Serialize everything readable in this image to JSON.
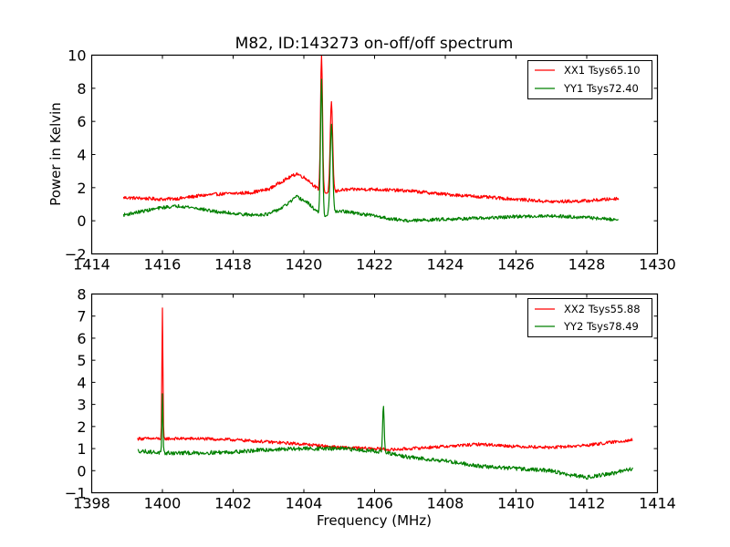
{
  "figure": {
    "title": "M82, ID:143273 on-off/off spectrum"
  },
  "chart_data": [
    {
      "type": "line",
      "title": "M82, ID:143273 on-off/off spectrum",
      "xlabel": "",
      "ylabel": "Power in Kelvin",
      "xlim": [
        1414,
        1430
      ],
      "ylim": [
        -2,
        10
      ],
      "xticks": [
        "1414",
        "1416",
        "1418",
        "1420",
        "1422",
        "1424",
        "1426",
        "1428",
        "1430"
      ],
      "yticks": [
        "−2",
        "0",
        "2",
        "4",
        "6",
        "8",
        "10"
      ],
      "xtick_values": [
        1414,
        1416,
        1418,
        1420,
        1422,
        1424,
        1426,
        1428,
        1430
      ],
      "ytick_values": [
        -2,
        0,
        2,
        4,
        6,
        8,
        10
      ],
      "grid": false,
      "legend_position": "top-right",
      "series": [
        {
          "name": "XX1 Tsys65.10",
          "color": "#ff0000",
          "x_range": [
            1414.9,
            1428.9
          ],
          "baseline": [
            [
              1414.9,
              1.4
            ],
            [
              1415.5,
              1.35
            ],
            [
              1416.0,
              1.3
            ],
            [
              1416.5,
              1.35
            ],
            [
              1417.0,
              1.5
            ],
            [
              1417.5,
              1.6
            ],
            [
              1418.0,
              1.65
            ],
            [
              1418.5,
              1.7
            ],
            [
              1419.0,
              1.9
            ],
            [
              1419.4,
              2.4
            ],
            [
              1419.8,
              2.85
            ],
            [
              1420.1,
              2.5
            ],
            [
              1420.4,
              1.9
            ],
            [
              1420.6,
              1.7
            ],
            [
              1420.75,
              1.6
            ],
            [
              1421.0,
              1.85
            ],
            [
              1421.5,
              1.9
            ],
            [
              1422.0,
              1.9
            ],
            [
              1423.0,
              1.8
            ],
            [
              1424.0,
              1.6
            ],
            [
              1425.0,
              1.45
            ],
            [
              1426.0,
              1.3
            ],
            [
              1427.0,
              1.15
            ],
            [
              1428.0,
              1.2
            ],
            [
              1428.9,
              1.35
            ]
          ],
          "peaks": [
            {
              "x": 1420.5,
              "y": 10.0,
              "width": 0.04
            },
            {
              "x": 1420.78,
              "y": 7.1,
              "width": 0.05
            }
          ],
          "noise": 0.1
        },
        {
          "name": "YY1 Tsys72.40",
          "color": "#008000",
          "x_range": [
            1414.9,
            1428.9
          ],
          "baseline": [
            [
              1414.9,
              0.35
            ],
            [
              1415.5,
              0.6
            ],
            [
              1416.0,
              0.8
            ],
            [
              1416.5,
              0.9
            ],
            [
              1417.0,
              0.75
            ],
            [
              1417.5,
              0.55
            ],
            [
              1418.0,
              0.45
            ],
            [
              1418.5,
              0.35
            ],
            [
              1419.0,
              0.4
            ],
            [
              1419.4,
              0.8
            ],
            [
              1419.8,
              1.45
            ],
            [
              1420.1,
              1.1
            ],
            [
              1420.4,
              0.5
            ],
            [
              1420.6,
              0.3
            ],
            [
              1420.75,
              0.35
            ],
            [
              1421.0,
              0.6
            ],
            [
              1421.5,
              0.45
            ],
            [
              1422.0,
              0.3
            ],
            [
              1422.5,
              0.1
            ],
            [
              1423.0,
              0.0
            ],
            [
              1424.0,
              0.1
            ],
            [
              1425.0,
              0.15
            ],
            [
              1426.0,
              0.25
            ],
            [
              1427.0,
              0.3
            ],
            [
              1428.0,
              0.2
            ],
            [
              1428.9,
              0.05
            ]
          ],
          "peaks": [
            {
              "x": 1420.5,
              "y": 8.5,
              "width": 0.04
            },
            {
              "x": 1420.78,
              "y": 5.8,
              "width": 0.05
            }
          ],
          "noise": 0.1
        }
      ]
    },
    {
      "type": "line",
      "title": "",
      "xlabel": "Frequency (MHz)",
      "ylabel": "",
      "xlim": [
        1398,
        1414
      ],
      "ylim": [
        -1,
        8
      ],
      "xticks": [
        "1398",
        "1400",
        "1402",
        "1404",
        "1406",
        "1408",
        "1410",
        "1412",
        "1414"
      ],
      "yticks": [
        "−1",
        "0",
        "1",
        "2",
        "3",
        "4",
        "5",
        "6",
        "7",
        "8"
      ],
      "xtick_values": [
        1398,
        1400,
        1402,
        1404,
        1406,
        1408,
        1410,
        1412,
        1414
      ],
      "ytick_values": [
        -1,
        0,
        1,
        2,
        3,
        4,
        5,
        6,
        7,
        8
      ],
      "grid": false,
      "legend_position": "top-right",
      "series": [
        {
          "name": "XX2 Tsys55.88",
          "color": "#ff0000",
          "x_range": [
            1399.3,
            1413.3
          ],
          "baseline": [
            [
              1399.3,
              1.45
            ],
            [
              1400.0,
              1.45
            ],
            [
              1401.0,
              1.45
            ],
            [
              1402.0,
              1.4
            ],
            [
              1403.0,
              1.3
            ],
            [
              1404.0,
              1.2
            ],
            [
              1405.0,
              1.05
            ],
            [
              1406.0,
              1.0
            ],
            [
              1406.5,
              0.95
            ],
            [
              1407.0,
              1.0
            ],
            [
              1408.0,
              1.1
            ],
            [
              1409.0,
              1.2
            ],
            [
              1410.0,
              1.1
            ],
            [
              1411.0,
              1.05
            ],
            [
              1412.0,
              1.15
            ],
            [
              1413.3,
              1.4
            ]
          ],
          "peaks": [
            {
              "x": 1400.0,
              "y": 7.3,
              "width": 0.02
            }
          ],
          "noise": 0.07
        },
        {
          "name": "YY2 Tsys78.49",
          "color": "#008000",
          "x_range": [
            1399.3,
            1413.3
          ],
          "baseline": [
            [
              1399.3,
              0.9
            ],
            [
              1400.0,
              0.8
            ],
            [
              1401.0,
              0.8
            ],
            [
              1402.0,
              0.85
            ],
            [
              1403.0,
              0.95
            ],
            [
              1404.0,
              1.0
            ],
            [
              1405.0,
              1.0
            ],
            [
              1406.0,
              0.9
            ],
            [
              1406.5,
              0.75
            ],
            [
              1407.0,
              0.6
            ],
            [
              1408.0,
              0.45
            ],
            [
              1409.0,
              0.2
            ],
            [
              1410.0,
              0.1
            ],
            [
              1411.0,
              0.0
            ],
            [
              1411.5,
              -0.2
            ],
            [
              1412.0,
              -0.3
            ],
            [
              1412.8,
              -0.1
            ],
            [
              1413.3,
              0.1
            ]
          ],
          "peaks": [
            {
              "x": 1400.0,
              "y": 3.4,
              "width": 0.02
            },
            {
              "x": 1406.25,
              "y": 3.0,
              "width": 0.03
            }
          ],
          "noise": 0.09
        }
      ]
    }
  ]
}
